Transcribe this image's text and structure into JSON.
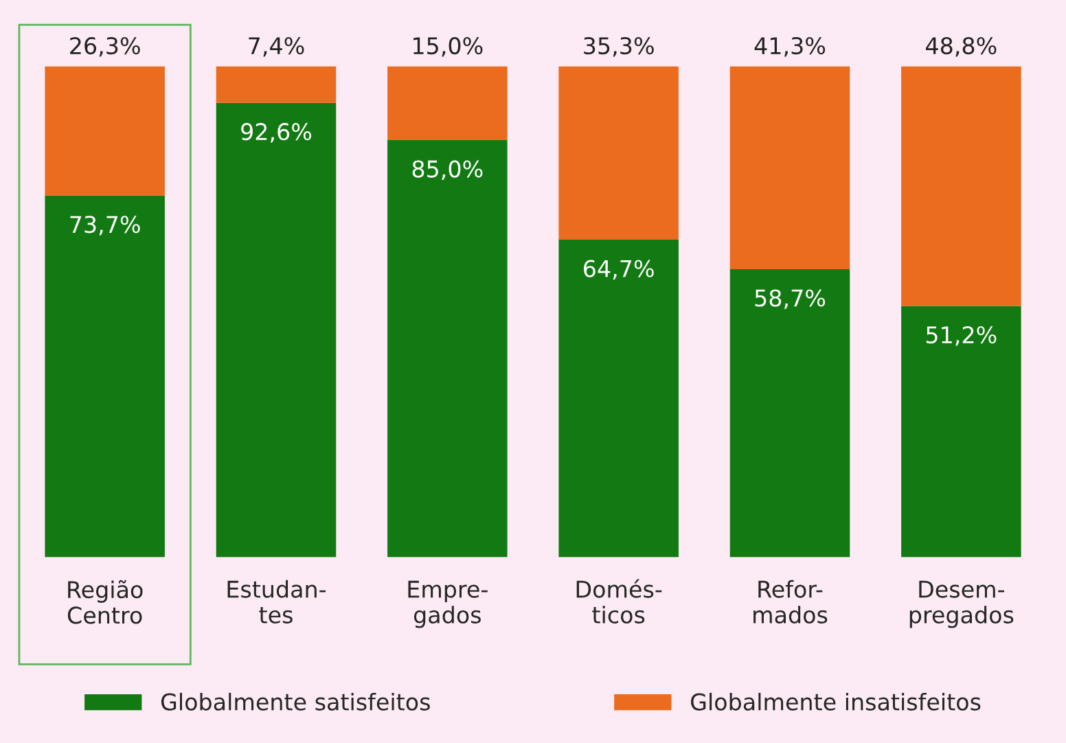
{
  "chart_data": {
    "type": "bar",
    "categories": [
      "Região\nCentro",
      "Estudan-\ntes",
      "Empre-\ngados",
      "Domés-\nticos",
      "Refor-\nmados",
      "Desem-\npregados"
    ],
    "series": [
      {
        "name": "Globalmente satisfeitos",
        "color": "#137a13",
        "values": [
          73.7,
          92.6,
          85.0,
          64.7,
          58.7,
          51.2
        ],
        "value_labels": [
          "73,7%",
          "92,6%",
          "85,0%",
          "64,7%",
          "58,7%",
          "51,2%"
        ]
      },
      {
        "name": "Globalmente insatisfeitos",
        "color": "#ec6c1f",
        "values": [
          26.3,
          7.4,
          15.0,
          35.3,
          41.3,
          48.8
        ],
        "value_labels": [
          "26,3%",
          "7,4%",
          "15,0%",
          "35,3%",
          "41,3%",
          "48,8%"
        ]
      }
    ],
    "stacked": true,
    "tick_labels": "x",
    "grid": false,
    "legend": "bottom"
  }
}
